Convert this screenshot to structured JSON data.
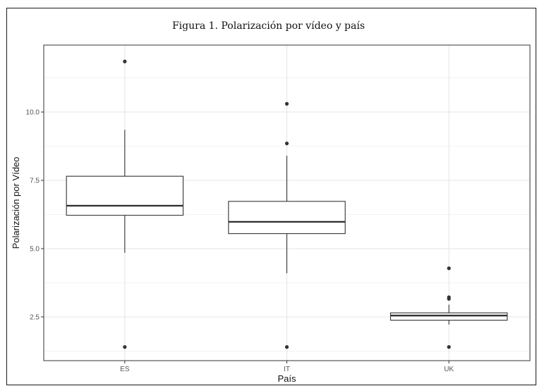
{
  "chart_data": {
    "type": "box",
    "title": "Figura 1. Polarización por vídeo y país",
    "xlabel": "País",
    "ylabel": "Polarización por Vídeo",
    "ylim": [
      0.9,
      12.45
    ],
    "yticks": [
      2.5,
      5.0,
      7.5,
      10.0
    ],
    "ytick_labels": [
      "2.5",
      "5.0",
      "7.5",
      "10.0"
    ],
    "categories": [
      "ES",
      "IT",
      "UK"
    ],
    "grid": true,
    "boxes": [
      {
        "name": "ES",
        "q1": 6.22,
        "median": 6.57,
        "q3": 7.65,
        "whisker_low": 4.85,
        "whisker_high": 9.35,
        "outliers": [
          11.85,
          1.4
        ]
      },
      {
        "name": "IT",
        "q1": 5.55,
        "median": 5.98,
        "q3": 6.73,
        "whisker_low": 4.1,
        "whisker_high": 8.4,
        "outliers": [
          10.3,
          8.85,
          1.4
        ]
      },
      {
        "name": "UK",
        "q1": 2.38,
        "median": 2.55,
        "q3": 2.65,
        "whisker_low": 2.22,
        "whisker_high": 2.95,
        "outliers": [
          4.28,
          3.22,
          3.16,
          1.4
        ]
      }
    ]
  }
}
